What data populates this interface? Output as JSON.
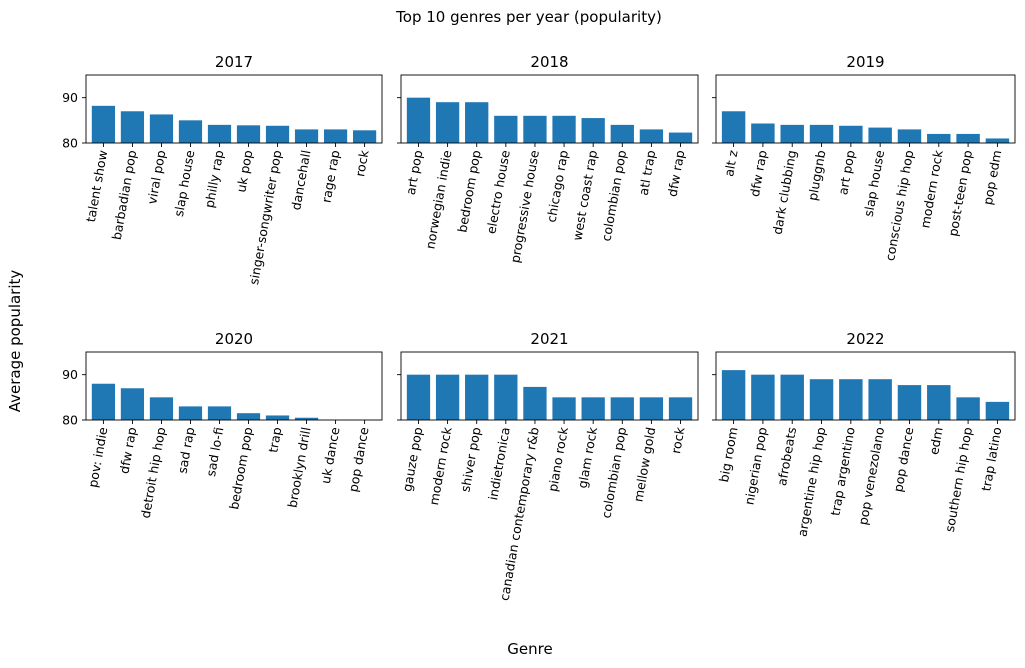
{
  "figure": {
    "suptitle": "Top 10 genres per year (popularity)",
    "ylabel": "Average popularity",
    "xlabel": "Genre"
  },
  "chart_data": [
    {
      "type": "bar",
      "title": "2017",
      "categories": [
        "talent show",
        "barbadian pop",
        "viral pop",
        "slap house",
        "philly rap",
        "uk pop",
        "singer-songwriter pop",
        "dancehall",
        "rage rap",
        "rock"
      ],
      "values": [
        88.2,
        87.0,
        86.3,
        85.0,
        84.0,
        83.9,
        83.8,
        83.0,
        83.0,
        82.8
      ],
      "ylim": [
        80,
        95
      ],
      "yticks": [
        80,
        90
      ],
      "color": "#1f77b4"
    },
    {
      "type": "bar",
      "title": "2018",
      "categories": [
        "art pop",
        "norwegian indie",
        "bedroom pop",
        "electro house",
        "progressive house",
        "chicago rap",
        "west coast rap",
        "colombian pop",
        "atl trap",
        "dfw rap"
      ],
      "values": [
        90.0,
        89.0,
        89.0,
        86.0,
        86.0,
        86.0,
        85.5,
        84.0,
        83.0,
        82.3
      ],
      "ylim": [
        80,
        95
      ],
      "yticks": [
        80,
        90
      ],
      "color": "#1f77b4"
    },
    {
      "type": "bar",
      "title": "2019",
      "categories": [
        "alt z",
        "dfw rap",
        "dark clubbing",
        "pluggnb",
        "art pop",
        "slap house",
        "conscious hip hop",
        "modern rock",
        "post-teen pop",
        "pop edm"
      ],
      "values": [
        87.0,
        84.3,
        84.0,
        84.0,
        83.8,
        83.4,
        83.0,
        82.0,
        82.0,
        81.0
      ],
      "ylim": [
        80,
        95
      ],
      "yticks": [
        80,
        90
      ],
      "color": "#1f77b4"
    },
    {
      "type": "bar",
      "title": "2020",
      "categories": [
        "pov: indie",
        "dfw rap",
        "detroit hip hop",
        "sad rap",
        "sad lo-fi",
        "bedroom pop",
        "trap",
        "brooklyn drill",
        "uk dance",
        "pop dance"
      ],
      "values": [
        88.0,
        87.0,
        85.0,
        83.0,
        83.0,
        81.5,
        81.0,
        80.5,
        80.0,
        80.0
      ],
      "ylim": [
        80,
        95
      ],
      "yticks": [
        80,
        90
      ],
      "color": "#1f77b4"
    },
    {
      "type": "bar",
      "title": "2021",
      "categories": [
        "gauze pop",
        "modern rock",
        "shiver pop",
        "indietronica",
        "canadian contemporary r&b",
        "piano rock",
        "glam rock",
        "colombian pop",
        "mellow gold",
        "rock"
      ],
      "values": [
        90.0,
        90.0,
        90.0,
        90.0,
        87.3,
        85.0,
        85.0,
        85.0,
        85.0,
        85.0
      ],
      "ylim": [
        80,
        95
      ],
      "yticks": [
        80,
        90
      ],
      "color": "#1f77b4"
    },
    {
      "type": "bar",
      "title": "2022",
      "categories": [
        "big room",
        "nigerian pop",
        "afrobeats",
        "argentine hip hop",
        "trap argentino",
        "pop venezolano",
        "pop dance",
        "edm",
        "southern hip hop",
        "trap latino"
      ],
      "values": [
        91.0,
        90.0,
        90.0,
        89.0,
        89.0,
        89.0,
        87.7,
        87.7,
        85.0,
        84.0
      ],
      "ylim": [
        80,
        95
      ],
      "yticks": [
        80,
        90
      ],
      "color": "#1f77b4"
    }
  ]
}
